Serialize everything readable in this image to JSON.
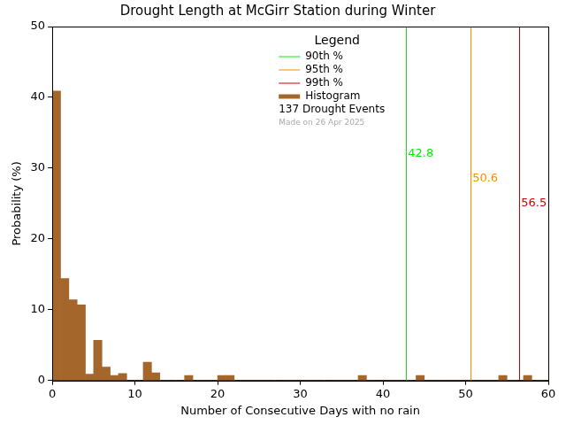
{
  "chart_data": {
    "type": "histogram",
    "title": "Drought Length at McGirr Station during Winter",
    "x_label": "Number of Consecutive Days with no rain",
    "y_label": "Probability (%)",
    "bins": [
      0,
      1,
      2,
      3,
      4,
      5,
      6,
      7,
      8,
      9,
      10,
      11,
      12,
      13,
      14,
      15,
      16,
      17,
      18,
      19,
      20,
      21,
      22,
      23,
      24,
      25,
      26,
      27,
      28,
      29,
      30,
      31,
      32,
      33,
      34,
      35,
      36,
      37,
      38,
      39,
      40,
      41,
      42,
      43,
      44,
      45,
      46,
      47,
      48,
      49,
      50,
      51,
      52,
      53,
      54,
      55,
      56,
      57,
      58,
      59,
      60
    ],
    "values": [
      40.9,
      14.4,
      11.4,
      10.7,
      0.9,
      5.7,
      1.9,
      0.7,
      1.0,
      0,
      0,
      2.6,
      1.1,
      0,
      0,
      0,
      0.7,
      0,
      0,
      0,
      0.7,
      0.7,
      0,
      0,
      0,
      0,
      0,
      0,
      0,
      0,
      0,
      0,
      0,
      0,
      0,
      0,
      0,
      0.7,
      0,
      0,
      0,
      0,
      0,
      0,
      0.7,
      0,
      0,
      0,
      0,
      0,
      0,
      0,
      0,
      0,
      0.7,
      0,
      0,
      0.7,
      0,
      0
    ],
    "color": "#a5662b",
    "histogram_name": "Histogram",
    "xlim": [
      0,
      60
    ],
    "xticks": [
      0,
      10,
      20,
      30,
      40,
      50,
      60
    ],
    "ylim": [
      0,
      50
    ],
    "yticks": [
      0,
      10,
      20,
      30,
      40,
      50
    ],
    "grid": false,
    "legend_title": "Legend",
    "percentile_lines": [
      {
        "name": "90th %",
        "value": 42.8,
        "color": "#00ee00"
      },
      {
        "name": "95th %",
        "value": 50.6,
        "color": "#ff8c00"
      },
      {
        "name": "99th %",
        "value": 56.5,
        "color": "#cc0000"
      }
    ],
    "annotations": [
      "137 Drought Events",
      "Made on 26 Apr 2025"
    ]
  }
}
